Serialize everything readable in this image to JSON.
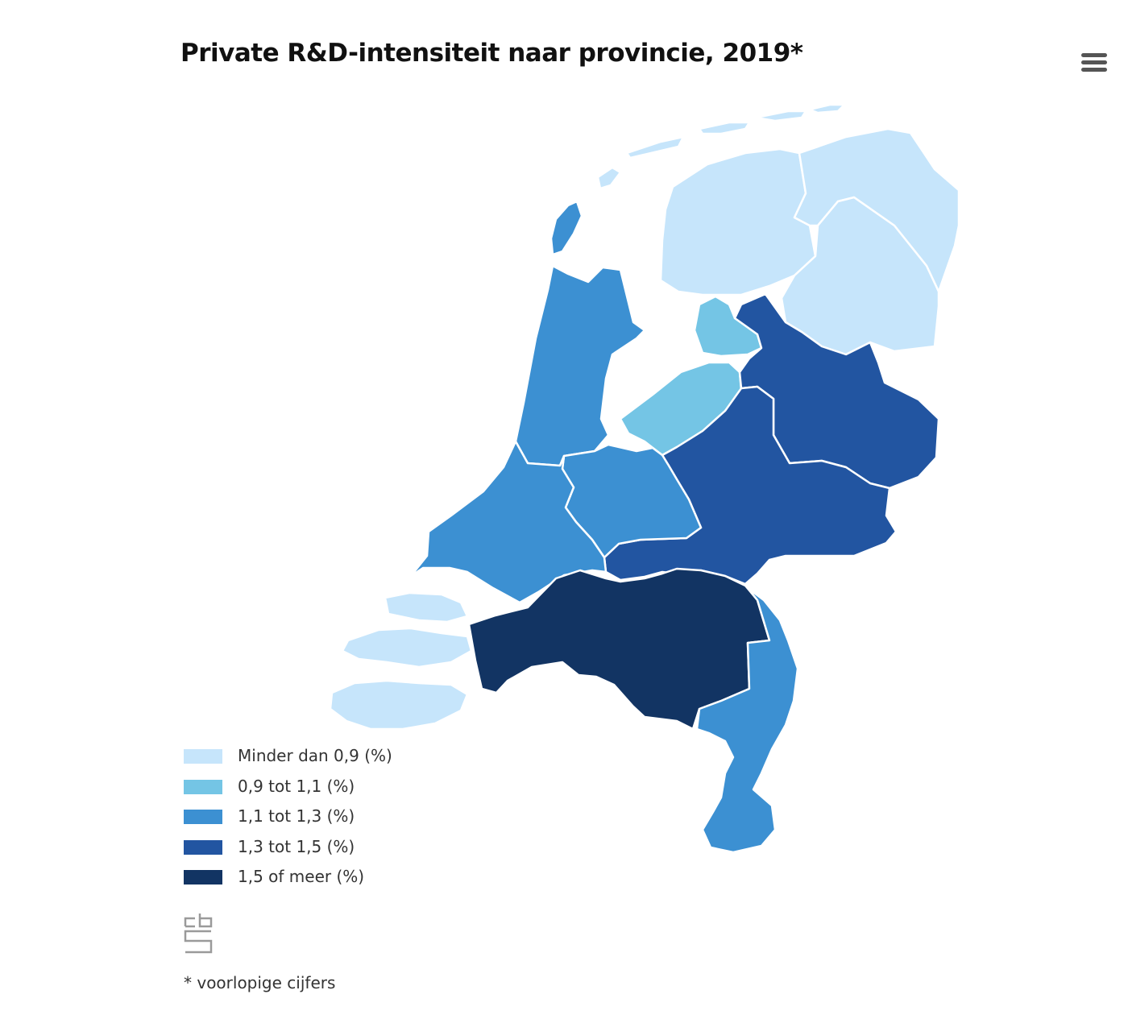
{
  "title": "Private R&D-intensiteit naar provincie, 2019*",
  "menu": {
    "icon": "hamburger-menu-icon"
  },
  "legend": [
    {
      "label": "Minder dan 0,9 (%)",
      "color": "#c6e5fb"
    },
    {
      "label": "0,9 tot 1,1 (%)",
      "color": "#74c5e5"
    },
    {
      "label": "1,1 tot 1,3 (%)",
      "color": "#3c90d2"
    },
    {
      "label": "1,3 tot 1,5 (%)",
      "color": "#2255a1"
    },
    {
      "label": "1,5 of meer (%)",
      "color": "#123463"
    }
  ],
  "provinces": [
    {
      "name": "Groningen",
      "class": 0
    },
    {
      "name": "Friesland",
      "class": 0
    },
    {
      "name": "Drenthe",
      "class": 0
    },
    {
      "name": "Zeeland",
      "class": 0
    },
    {
      "name": "Flevoland",
      "class": 1
    },
    {
      "name": "Noord-Holland",
      "class": 2
    },
    {
      "name": "Zuid-Holland",
      "class": 2
    },
    {
      "name": "Utrecht",
      "class": 2
    },
    {
      "name": "Limburg",
      "class": 2
    },
    {
      "name": "Overijssel",
      "class": 3
    },
    {
      "name": "Gelderland",
      "class": 3
    },
    {
      "name": "Noord-Brabant",
      "class": 4
    }
  ],
  "logo": {
    "icon": "cbs-logo-icon"
  },
  "footnote": "* voorlopige cijfers"
}
